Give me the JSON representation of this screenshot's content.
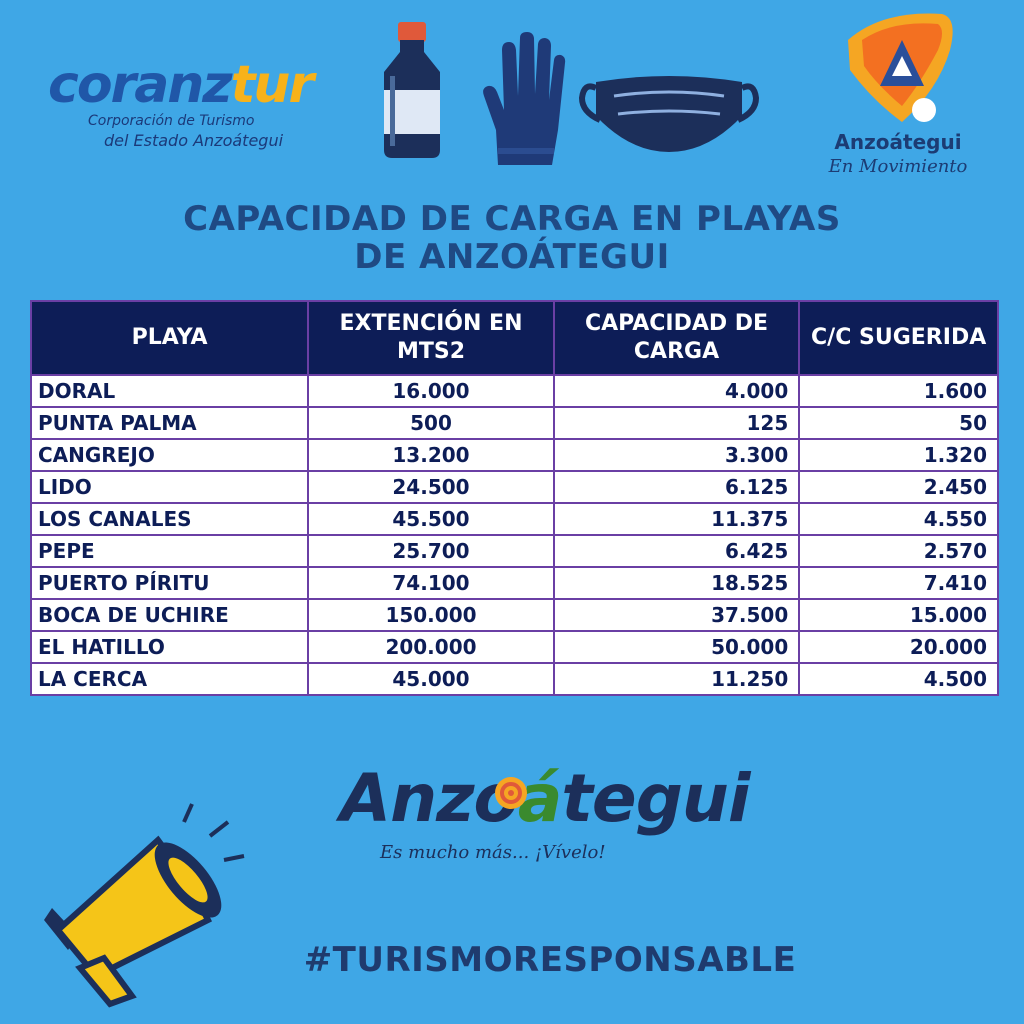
{
  "logos": {
    "coranztur": {
      "brand_a": "coranz",
      "brand_b": "tur",
      "line1": "Corporación de Turismo",
      "line2": "del Estado Anzoátegui"
    },
    "anzoategui_movimiento": {
      "name": "Anzoátegui",
      "tagline": "En Movimiento"
    },
    "anzoategui": {
      "word_a": "Anzo",
      "word_b": "á",
      "word_c": "tegui",
      "slogan": "Es mucho más... ¡Vívelo!"
    }
  },
  "icons": [
    "bottle-icon",
    "glove-icon",
    "mask-icon",
    "megaphone-icon"
  ],
  "title": {
    "line1": "CAPACIDAD DE CARGA EN PLAYAS",
    "line2": "DE ANZOÁTEGUI"
  },
  "table": {
    "headers": [
      "PLAYA",
      "EXTENCIÓN EN MTS2",
      "CAPACIDAD DE CARGA",
      "C/C SUGERIDA"
    ],
    "rows": [
      [
        "DORAL",
        "16.000",
        "4.000",
        "1.600"
      ],
      [
        "PUNTA PALMA",
        "500",
        "125",
        "50"
      ],
      [
        "CANGREJO",
        "13.200",
        "3.300",
        "1.320"
      ],
      [
        "LIDO",
        "24.500",
        "6.125",
        "2.450"
      ],
      [
        "LOS CANALES",
        "45.500",
        "11.375",
        "4.550"
      ],
      [
        "PEPE",
        "25.700",
        "6.425",
        "2.570"
      ],
      [
        "PUERTO PÍRITU",
        "74.100",
        "18.525",
        "7.410"
      ],
      [
        "BOCA DE UCHIRE",
        "150.000",
        "37.500",
        "15.000"
      ],
      [
        "EL HATILLO",
        "200.000",
        "50.000",
        "20.000"
      ],
      [
        "LA CERCA",
        "45.000",
        "11.250",
        "4.500"
      ]
    ]
  },
  "hashtag": "#TURISMORESPONSABLE",
  "colors": {
    "background": "#3fa7e6",
    "header_bg": "#0d1d57",
    "border": "#6a3fa4",
    "title": "#1f4a84"
  }
}
